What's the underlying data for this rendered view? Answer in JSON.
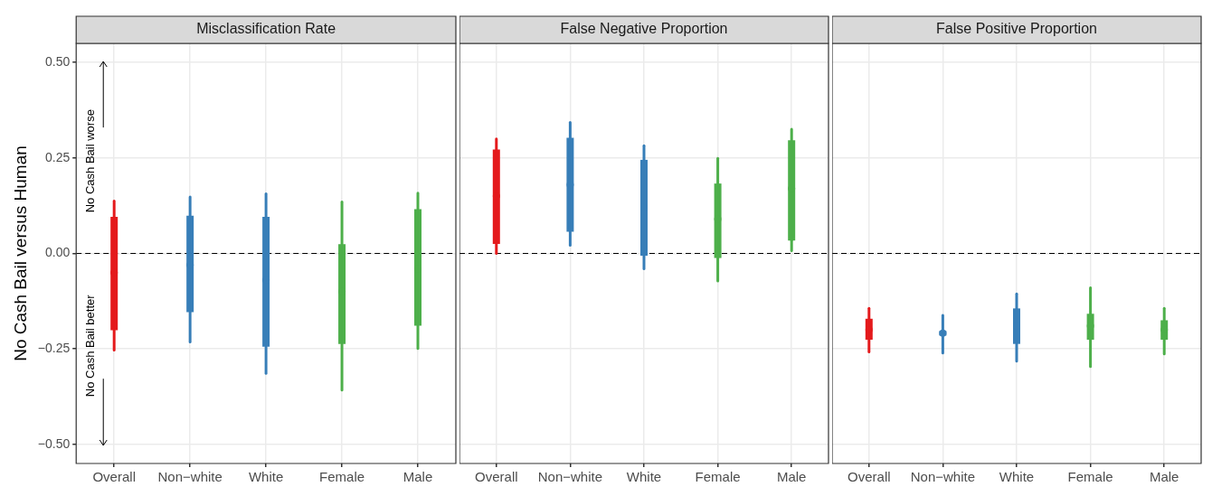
{
  "chart_data": [
    {
      "type": "box",
      "title": "Misclassification Rate",
      "ylabel": "No Cash Bail versus Human",
      "categories": [
        "Overall",
        "Non−white",
        "White",
        "Female",
        "Male"
      ],
      "colors": [
        "#e41a1c",
        "#377eb8",
        "#377eb8",
        "#4daf4a",
        "#4daf4a"
      ],
      "boxes": [
        {
          "low": -0.253,
          "q1": -0.201,
          "median": -0.05,
          "q3": 0.096,
          "high": 0.137
        },
        {
          "low": -0.232,
          "q1": -0.154,
          "median": -0.03,
          "q3": 0.099,
          "high": 0.148
        },
        {
          "low": -0.314,
          "q1": -0.244,
          "median": -0.07,
          "q3": 0.096,
          "high": 0.156
        },
        {
          "low": -0.358,
          "q1": -0.237,
          "median": -0.1,
          "q3": 0.024,
          "high": 0.135
        },
        {
          "low": -0.249,
          "q1": -0.189,
          "median": -0.04,
          "q3": 0.116,
          "high": 0.158
        }
      ],
      "ylim": [
        -0.55,
        0.55
      ],
      "yticks": [
        {
          "value": -0.5,
          "label": "−0.50"
        },
        {
          "value": -0.25,
          "label": "−0.25"
        },
        {
          "value": 0,
          "label": "0.00"
        },
        {
          "value": 0.25,
          "label": "0.25"
        },
        {
          "value": 0.5,
          "label": "0.50"
        }
      ],
      "grid": true,
      "ref_lines": [
        {
          "axis": "y",
          "value": 0,
          "color": "#000000",
          "line_style": "dashed"
        }
      ],
      "annotations": [
        "No Cash Bail worse",
        "No Cash Bail better"
      ]
    },
    {
      "type": "box",
      "title": "False Negative Proportion",
      "categories": [
        "Overall",
        "Non−white",
        "White",
        "Female",
        "Male"
      ],
      "colors": [
        "#e41a1c",
        "#377eb8",
        "#377eb8",
        "#4daf4a",
        "#4daf4a"
      ],
      "boxes": [
        {
          "low": 0.0,
          "q1": 0.025,
          "median": 0.15,
          "q3": 0.272,
          "high": 0.3
        },
        {
          "low": 0.021,
          "q1": 0.057,
          "median": 0.18,
          "q3": 0.303,
          "high": 0.343
        },
        {
          "low": -0.04,
          "q1": -0.006,
          "median": 0.12,
          "q3": 0.245,
          "high": 0.282
        },
        {
          "low": -0.072,
          "q1": -0.012,
          "median": 0.09,
          "q3": 0.183,
          "high": 0.249
        },
        {
          "low": 0.007,
          "q1": 0.034,
          "median": 0.17,
          "q3": 0.296,
          "high": 0.325
        }
      ],
      "ylim": [
        -0.55,
        0.55
      ],
      "yticks": [
        -0.5,
        -0.25,
        0,
        0.25,
        0.5
      ],
      "tick_labels": "x",
      "grid": true,
      "ref_lines": [
        {
          "axis": "y",
          "value": 0,
          "color": "#000000",
          "line_style": "dashed"
        }
      ]
    },
    {
      "type": "box",
      "title": "False Positive Proportion",
      "categories": [
        "Overall",
        "Non−white",
        "White",
        "Female",
        "Male"
      ],
      "colors": [
        "#e41a1c",
        "#377eb8",
        "#377eb8",
        "#4daf4a",
        "#4daf4a"
      ],
      "boxes": [
        {
          "low": -0.258,
          "q1": -0.226,
          "median": -0.2,
          "q3": -0.171,
          "high": -0.144
        },
        {
          "low": -0.261,
          "q1": -0.215,
          "median": -0.209,
          "q3": -0.203,
          "high": -0.162
        },
        {
          "low": -0.282,
          "q1": -0.237,
          "median": -0.19,
          "q3": -0.144,
          "high": -0.106
        },
        {
          "low": -0.296,
          "q1": -0.226,
          "median": -0.19,
          "q3": -0.158,
          "high": -0.09
        },
        {
          "low": -0.263,
          "q1": -0.226,
          "median": -0.2,
          "q3": -0.175,
          "high": -0.144
        }
      ],
      "ylim": [
        -0.55,
        0.55
      ],
      "yticks": [
        -0.5,
        -0.25,
        0,
        0.25,
        0.5
      ],
      "tick_labels": "x",
      "grid": true,
      "ref_lines": [
        {
          "axis": "y",
          "value": 0,
          "color": "#000000",
          "line_style": "dashed"
        }
      ]
    }
  ]
}
